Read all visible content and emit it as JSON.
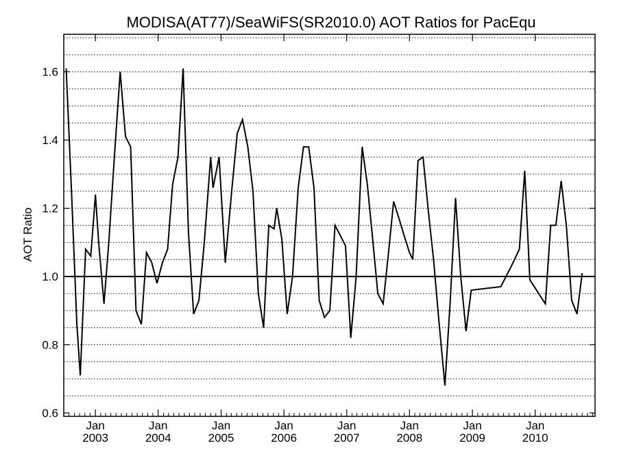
{
  "chart_data": {
    "type": "line",
    "title": "MODISA(AT77)/SeaWiFS(SR2010.0)  AOT Ratios for PacEqu",
    "xlabel": "",
    "ylabel": "AOT Ratio",
    "xlim": [
      "2002-07-01",
      "2010-12-15"
    ],
    "ylim": [
      0.59,
      1.71
    ],
    "y_ticks": [
      0.6,
      0.8,
      1.0,
      1.2,
      1.4,
      1.6
    ],
    "y_tick_labels": [
      "0.6",
      "0.8",
      "1.0",
      "1.2",
      "1.4",
      "1.6"
    ],
    "y_dotted_grid": [
      0.65,
      0.7,
      0.75,
      0.8,
      0.85,
      0.9,
      0.95,
      1.05,
      1.1,
      1.15,
      1.2,
      1.25,
      1.3,
      1.35,
      1.4,
      1.45,
      1.5,
      1.55,
      1.6,
      1.65,
      1.7
    ],
    "reference_line": 1.0,
    "x_ticks": [
      {
        "date": "2003-01-01",
        "month": "Jan",
        "year": "2003"
      },
      {
        "date": "2004-01-01",
        "month": "Jan",
        "year": "2004"
      },
      {
        "date": "2005-01-01",
        "month": "Jan",
        "year": "2005"
      },
      {
        "date": "2006-01-01",
        "month": "Jan",
        "year": "2006"
      },
      {
        "date": "2007-01-01",
        "month": "Jan",
        "year": "2007"
      },
      {
        "date": "2008-01-01",
        "month": "Jan",
        "year": "2008"
      },
      {
        "date": "2009-01-01",
        "month": "Jan",
        "year": "2009"
      },
      {
        "date": "2010-01-01",
        "month": "Jan",
        "year": "2010"
      }
    ],
    "grid": "horizontal dotted",
    "colors": {
      "line": "#000000",
      "grid": "#000000",
      "background": "#ffffff"
    },
    "series": [
      {
        "points": [
          [
            "2002-07-15",
            1.61
          ],
          [
            "2002-08-15",
            1.25
          ],
          [
            "2002-09-15",
            0.86
          ],
          [
            "2002-10-05",
            0.71
          ],
          [
            "2002-11-05",
            1.08
          ],
          [
            "2002-12-05",
            1.06
          ],
          [
            "2003-01-01",
            1.24
          ],
          [
            "2003-01-20",
            1.1
          ],
          [
            "2003-02-20",
            0.92
          ],
          [
            "2003-03-20",
            1.1
          ],
          [
            "2003-04-20",
            1.34
          ],
          [
            "2003-05-25",
            1.6
          ],
          [
            "2003-06-25",
            1.41
          ],
          [
            "2003-07-25",
            1.38
          ],
          [
            "2003-08-25",
            0.9
          ],
          [
            "2003-09-25",
            0.86
          ],
          [
            "2003-10-25",
            1.07
          ],
          [
            "2003-11-25",
            1.04
          ],
          [
            "2003-12-25",
            0.98
          ],
          [
            "2004-01-25",
            1.04
          ],
          [
            "2004-02-25",
            1.08
          ],
          [
            "2004-03-25",
            1.27
          ],
          [
            "2004-04-25",
            1.35
          ],
          [
            "2004-05-25",
            1.61
          ],
          [
            "2004-06-25",
            1.13
          ],
          [
            "2004-07-25",
            0.89
          ],
          [
            "2004-08-25",
            0.93
          ],
          [
            "2004-09-25",
            1.1
          ],
          [
            "2004-11-01",
            1.35
          ],
          [
            "2004-11-15",
            1.26
          ],
          [
            "2004-12-20",
            1.35
          ],
          [
            "2005-01-25",
            1.04
          ],
          [
            "2005-03-05",
            1.26
          ],
          [
            "2005-04-05",
            1.42
          ],
          [
            "2005-05-05",
            1.46
          ],
          [
            "2005-06-05",
            1.38
          ],
          [
            "2005-07-05",
            1.25
          ],
          [
            "2005-08-05",
            0.95
          ],
          [
            "2005-09-05",
            0.85
          ],
          [
            "2005-10-05",
            1.15
          ],
          [
            "2005-11-05",
            1.14
          ],
          [
            "2005-11-20",
            1.2
          ],
          [
            "2005-12-20",
            1.11
          ],
          [
            "2006-01-20",
            0.89
          ],
          [
            "2006-02-20",
            1.0
          ],
          [
            "2006-03-25",
            1.26
          ],
          [
            "2006-04-25",
            1.38
          ],
          [
            "2006-05-25",
            1.38
          ],
          [
            "2006-06-25",
            1.26
          ],
          [
            "2006-07-25",
            0.93
          ],
          [
            "2006-08-25",
            0.88
          ],
          [
            "2006-09-25",
            0.9
          ],
          [
            "2006-10-25",
            1.15
          ],
          [
            "2006-11-25",
            1.12
          ],
          [
            "2006-12-25",
            1.09
          ],
          [
            "2007-01-25",
            0.82
          ],
          [
            "2007-02-25",
            1.0
          ],
          [
            "2007-04-01",
            1.38
          ],
          [
            "2007-05-01",
            1.27
          ],
          [
            "2007-06-01",
            1.11
          ],
          [
            "2007-07-01",
            0.95
          ],
          [
            "2007-08-01",
            0.92
          ],
          [
            "2007-09-01",
            1.07
          ],
          [
            "2007-10-01",
            1.22
          ],
          [
            "2007-11-01",
            1.17
          ],
          [
            "2007-12-01",
            1.12
          ],
          [
            "2008-01-01",
            1.07
          ],
          [
            "2008-01-20",
            1.05
          ],
          [
            "2008-02-20",
            1.34
          ],
          [
            "2008-03-20",
            1.35
          ],
          [
            "2008-04-20",
            1.19
          ],
          [
            "2008-05-20",
            1.05
          ],
          [
            "2008-06-20",
            0.87
          ],
          [
            "2008-07-25",
            0.68
          ],
          [
            "2008-08-25",
            0.93
          ],
          [
            "2008-09-25",
            1.23
          ],
          [
            "2008-10-25",
            1.0
          ],
          [
            "2008-11-25",
            0.84
          ],
          [
            "2008-12-25",
            0.96
          ],
          [
            "2009-06-15",
            0.97
          ],
          [
            "2009-08-15",
            1.03
          ],
          [
            "2009-10-01",
            1.08
          ],
          [
            "2009-11-01",
            1.31
          ],
          [
            "2009-12-01",
            0.99
          ],
          [
            "2010-03-01",
            0.92
          ],
          [
            "2010-04-01",
            1.15
          ],
          [
            "2010-05-01",
            1.15
          ],
          [
            "2010-06-01",
            1.28
          ],
          [
            "2010-07-01",
            1.15
          ],
          [
            "2010-08-01",
            0.93
          ],
          [
            "2010-09-01",
            0.89
          ],
          [
            "2010-10-01",
            1.01
          ]
        ]
      }
    ]
  }
}
